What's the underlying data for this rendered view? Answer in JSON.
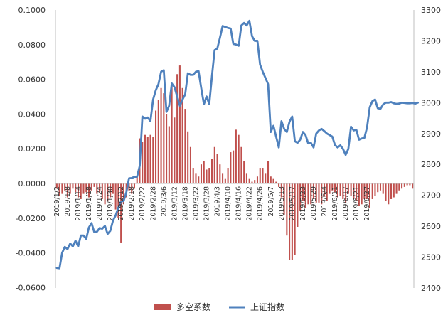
{
  "chart_data": {
    "type": "bar+line",
    "colors": {
      "bar": "#C0504D",
      "line": "#4F81BD",
      "axis": "#BFBFBF",
      "text": "#333333"
    },
    "y_left": {
      "min": -0.06,
      "max": 0.1,
      "step": 0.02,
      "tick_labels": [
        "0.1000",
        "0.0800",
        "0.0600",
        "0.0400",
        "0.0200",
        "0.0000",
        "-0.0200",
        "-0.0400",
        "-0.0600"
      ]
    },
    "y_right": {
      "min": 2400,
      "max": 3300,
      "step": 100,
      "tick_labels": [
        "3300",
        "3200",
        "3100",
        "3000",
        "2900",
        "2800",
        "2700",
        "2600",
        "2500",
        "2400"
      ]
    },
    "x_tick_labels": [
      "2019/1/2",
      "2019/1/8",
      "2019/1/14",
      "2019/1/18",
      "2019/1/24",
      "2019/1/30",
      "2019/2/12",
      "2019/2/18",
      "2019/2/22",
      "2019/2/28",
      "2019/3/6",
      "2019/3/12",
      "2019/3/18",
      "2019/3/22",
      "2019/3/28",
      "2019/4/3",
      "2019/4/10",
      "2019/4/16",
      "2019/4/22",
      "2019/4/26",
      "2019/5/7",
      "2019/5/13",
      "2019/5/17",
      "2019/5/23",
      "2019/5/29",
      "2019/6/4",
      "2019/6/11",
      "2019/6/17",
      "2019/6/21",
      "2019/6/27"
    ],
    "tick_every": 4,
    "series": [
      {
        "name": "多空系数",
        "type": "bar",
        "axis": "left",
        "values": [
          -0.003,
          -0.007,
          -0.006,
          -0.004,
          -0.008,
          -0.006,
          -0.003,
          -0.005,
          -0.008,
          -0.009,
          -0.006,
          -0.005,
          -0.008,
          -0.004,
          -0.002,
          -0.006,
          -0.005,
          -0.009,
          -0.012,
          -0.01,
          -0.008,
          -0.006,
          -0.015,
          -0.02,
          -0.034,
          -0.012,
          -0.008,
          -0.004,
          -0.006,
          -0.003,
          0.004,
          0.026,
          0.024,
          0.028,
          0.027,
          0.028,
          0.027,
          0.042,
          0.048,
          0.055,
          0.052,
          0.04,
          0.033,
          0.056,
          0.038,
          0.063,
          0.068,
          0.055,
          0.043,
          0.03,
          0.021,
          0.009,
          0.006,
          0.004,
          0.011,
          0.013,
          0.008,
          0.009,
          0.014,
          0.021,
          0.017,
          0.011,
          0.006,
          0.003,
          0.009,
          0.018,
          0.019,
          0.031,
          0.028,
          0.021,
          0.013,
          0.006,
          0.003,
          0.001,
          0.002,
          0.004,
          0.009,
          0.009,
          0.006,
          0.013,
          0.004,
          0.003,
          0.001,
          -0.002,
          -0.008,
          -0.018,
          -0.03,
          -0.044,
          -0.044,
          -0.041,
          -0.025,
          -0.016,
          -0.01,
          -0.014,
          -0.012,
          -0.012,
          -0.009,
          -0.011,
          -0.011,
          -0.012,
          -0.007,
          -0.01,
          -0.006,
          -0.004,
          -0.005,
          -0.008,
          -0.007,
          -0.009,
          -0.011,
          -0.006,
          -0.007,
          -0.009,
          -0.01,
          -0.013,
          -0.012,
          -0.009,
          -0.009,
          -0.014,
          -0.009,
          -0.007,
          -0.005,
          -0.004,
          -0.006,
          -0.01,
          -0.012,
          -0.009,
          -0.008,
          -0.006,
          -0.004,
          -0.003,
          -0.002,
          -0.001,
          -0.001,
          -0.003
        ]
      },
      {
        "name": "上证指数",
        "type": "line",
        "axis": "right",
        "values": [
          2465,
          2464,
          2514,
          2533,
          2526,
          2544,
          2535,
          2553,
          2535,
          2570,
          2570,
          2559,
          2596,
          2610,
          2581,
          2582,
          2594,
          2592,
          2601,
          2575,
          2585,
          2618,
          2635,
          2660,
          2680,
          2682,
          2710,
          2755,
          2756,
          2760,
          2760,
          2795,
          2955,
          2948,
          2952,
          2940,
          3010,
          3040,
          3060,
          3100,
          3105,
          2970,
          2990,
          3062,
          3050,
          3020,
          2990,
          3010,
          3027,
          3095,
          3090,
          3090,
          3100,
          3102,
          3047,
          2995,
          3020,
          2995,
          3085,
          3170,
          3175,
          3210,
          3248,
          3245,
          3242,
          3240,
          3190,
          3188,
          3184,
          3250,
          3258,
          3250,
          3265,
          3215,
          3200,
          3200,
          3123,
          3100,
          3080,
          3060,
          2905,
          2925,
          2890,
          2855,
          2940,
          2915,
          2905,
          2938,
          2955,
          2875,
          2870,
          2880,
          2905,
          2895,
          2868,
          2870,
          2855,
          2900,
          2910,
          2915,
          2908,
          2900,
          2895,
          2890,
          2863,
          2855,
          2862,
          2850,
          2831,
          2850,
          2922,
          2910,
          2912,
          2880,
          2884,
          2886,
          2920,
          2985,
          3005,
          3010,
          2982,
          2980,
          2994,
          3000,
          3000,
          3002,
          2998,
          2996,
          2997,
          3000,
          2999,
          2998,
          2998,
          2999,
          2997,
          3000
        ]
      }
    ]
  }
}
